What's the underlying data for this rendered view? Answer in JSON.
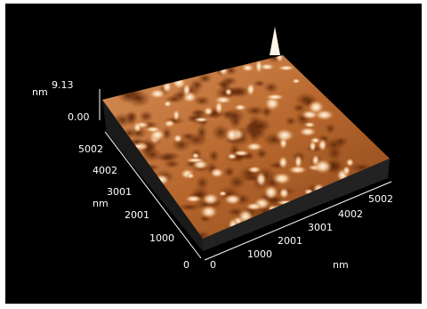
{
  "z_axis": {
    "unit": "nm",
    "max": "9.13",
    "min": "0.00"
  },
  "y_axis": {
    "unit": "nm",
    "ticks": [
      "5002",
      "4002",
      "3001",
      "2001",
      "1000",
      "0"
    ]
  },
  "x_axis": {
    "unit": "nm",
    "ticks": [
      "0",
      "1000",
      "2001",
      "3001",
      "4002",
      "5002"
    ]
  }
}
